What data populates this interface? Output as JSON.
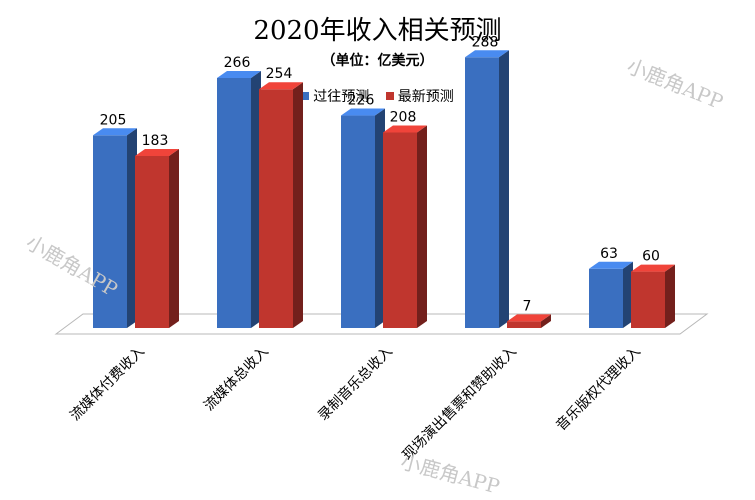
{
  "chart_data": {
    "type": "bar",
    "title": "2020年收入相关预测",
    "subtitle": "（单位：亿美元）",
    "categories": [
      "流媒体付费收入",
      "流媒体总收入",
      "录制音乐总收入",
      "现场演出售票和赞助收入",
      "音乐版权代理收入"
    ],
    "series": [
      {
        "name": "过往预测",
        "values": [
          205,
          266,
          226,
          288,
          63
        ],
        "color": "#3a6fc0"
      },
      {
        "name": "最新预测",
        "values": [
          183,
          254,
          208,
          7,
          60
        ],
        "color": "#c0362e"
      }
    ],
    "ylim": [
      0,
      300
    ],
    "legend": "top",
    "grid": false
  },
  "watermark": "小鹿角APP"
}
